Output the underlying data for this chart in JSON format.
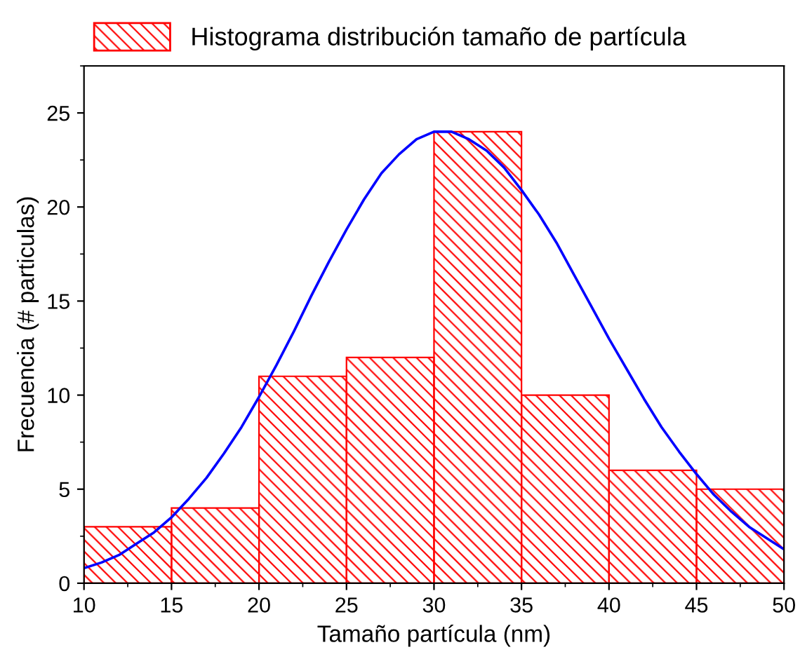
{
  "chart_data": {
    "type": "histogram",
    "xlabel": "Tamaño partícula (nm)",
    "ylabel": "Frecuencia (# particulas)",
    "bins": [
      10,
      15,
      20,
      25,
      30,
      35,
      40,
      45,
      50
    ],
    "series": [
      {
        "name": "Histograma distribución tamaño de partícula",
        "color": "#ff0000",
        "values": [
          3,
          4,
          11,
          12,
          24,
          10,
          6,
          5
        ]
      },
      {
        "type": "line",
        "color": "#0000ff",
        "x": [
          10,
          11,
          12,
          13,
          14,
          15,
          16,
          17,
          18,
          19,
          20,
          21,
          22,
          23,
          24,
          25,
          26,
          27,
          28,
          29,
          30,
          30.5,
          31,
          32,
          33,
          34,
          35,
          36,
          37,
          38,
          39,
          40,
          41,
          42,
          43,
          44,
          45,
          46,
          47,
          48,
          49,
          50
        ],
        "values": [
          0.8,
          1.1,
          1.5,
          2.1,
          2.7,
          3.5,
          4.5,
          5.6,
          6.9,
          8.3,
          9.9,
          11.6,
          13.4,
          15.3,
          17.1,
          18.8,
          20.4,
          21.8,
          22.8,
          23.6,
          24.0,
          24.0,
          24.0,
          23.6,
          23.0,
          22.1,
          20.9,
          19.6,
          18.1,
          16.4,
          14.7,
          13.0,
          11.4,
          9.8,
          8.3,
          7.0,
          5.8,
          4.7,
          3.8,
          3.0,
          2.4,
          1.8
        ]
      }
    ],
    "xlim": [
      10,
      50
    ],
    "xticks": [
      10,
      15,
      20,
      25,
      30,
      35,
      40,
      45,
      50
    ],
    "ylim": [
      0,
      27.5
    ],
    "yticks": [
      0,
      5,
      10,
      15,
      20,
      25
    ],
    "grid": false,
    "legend": "top",
    "marker": "none",
    "line_style": "solid"
  }
}
